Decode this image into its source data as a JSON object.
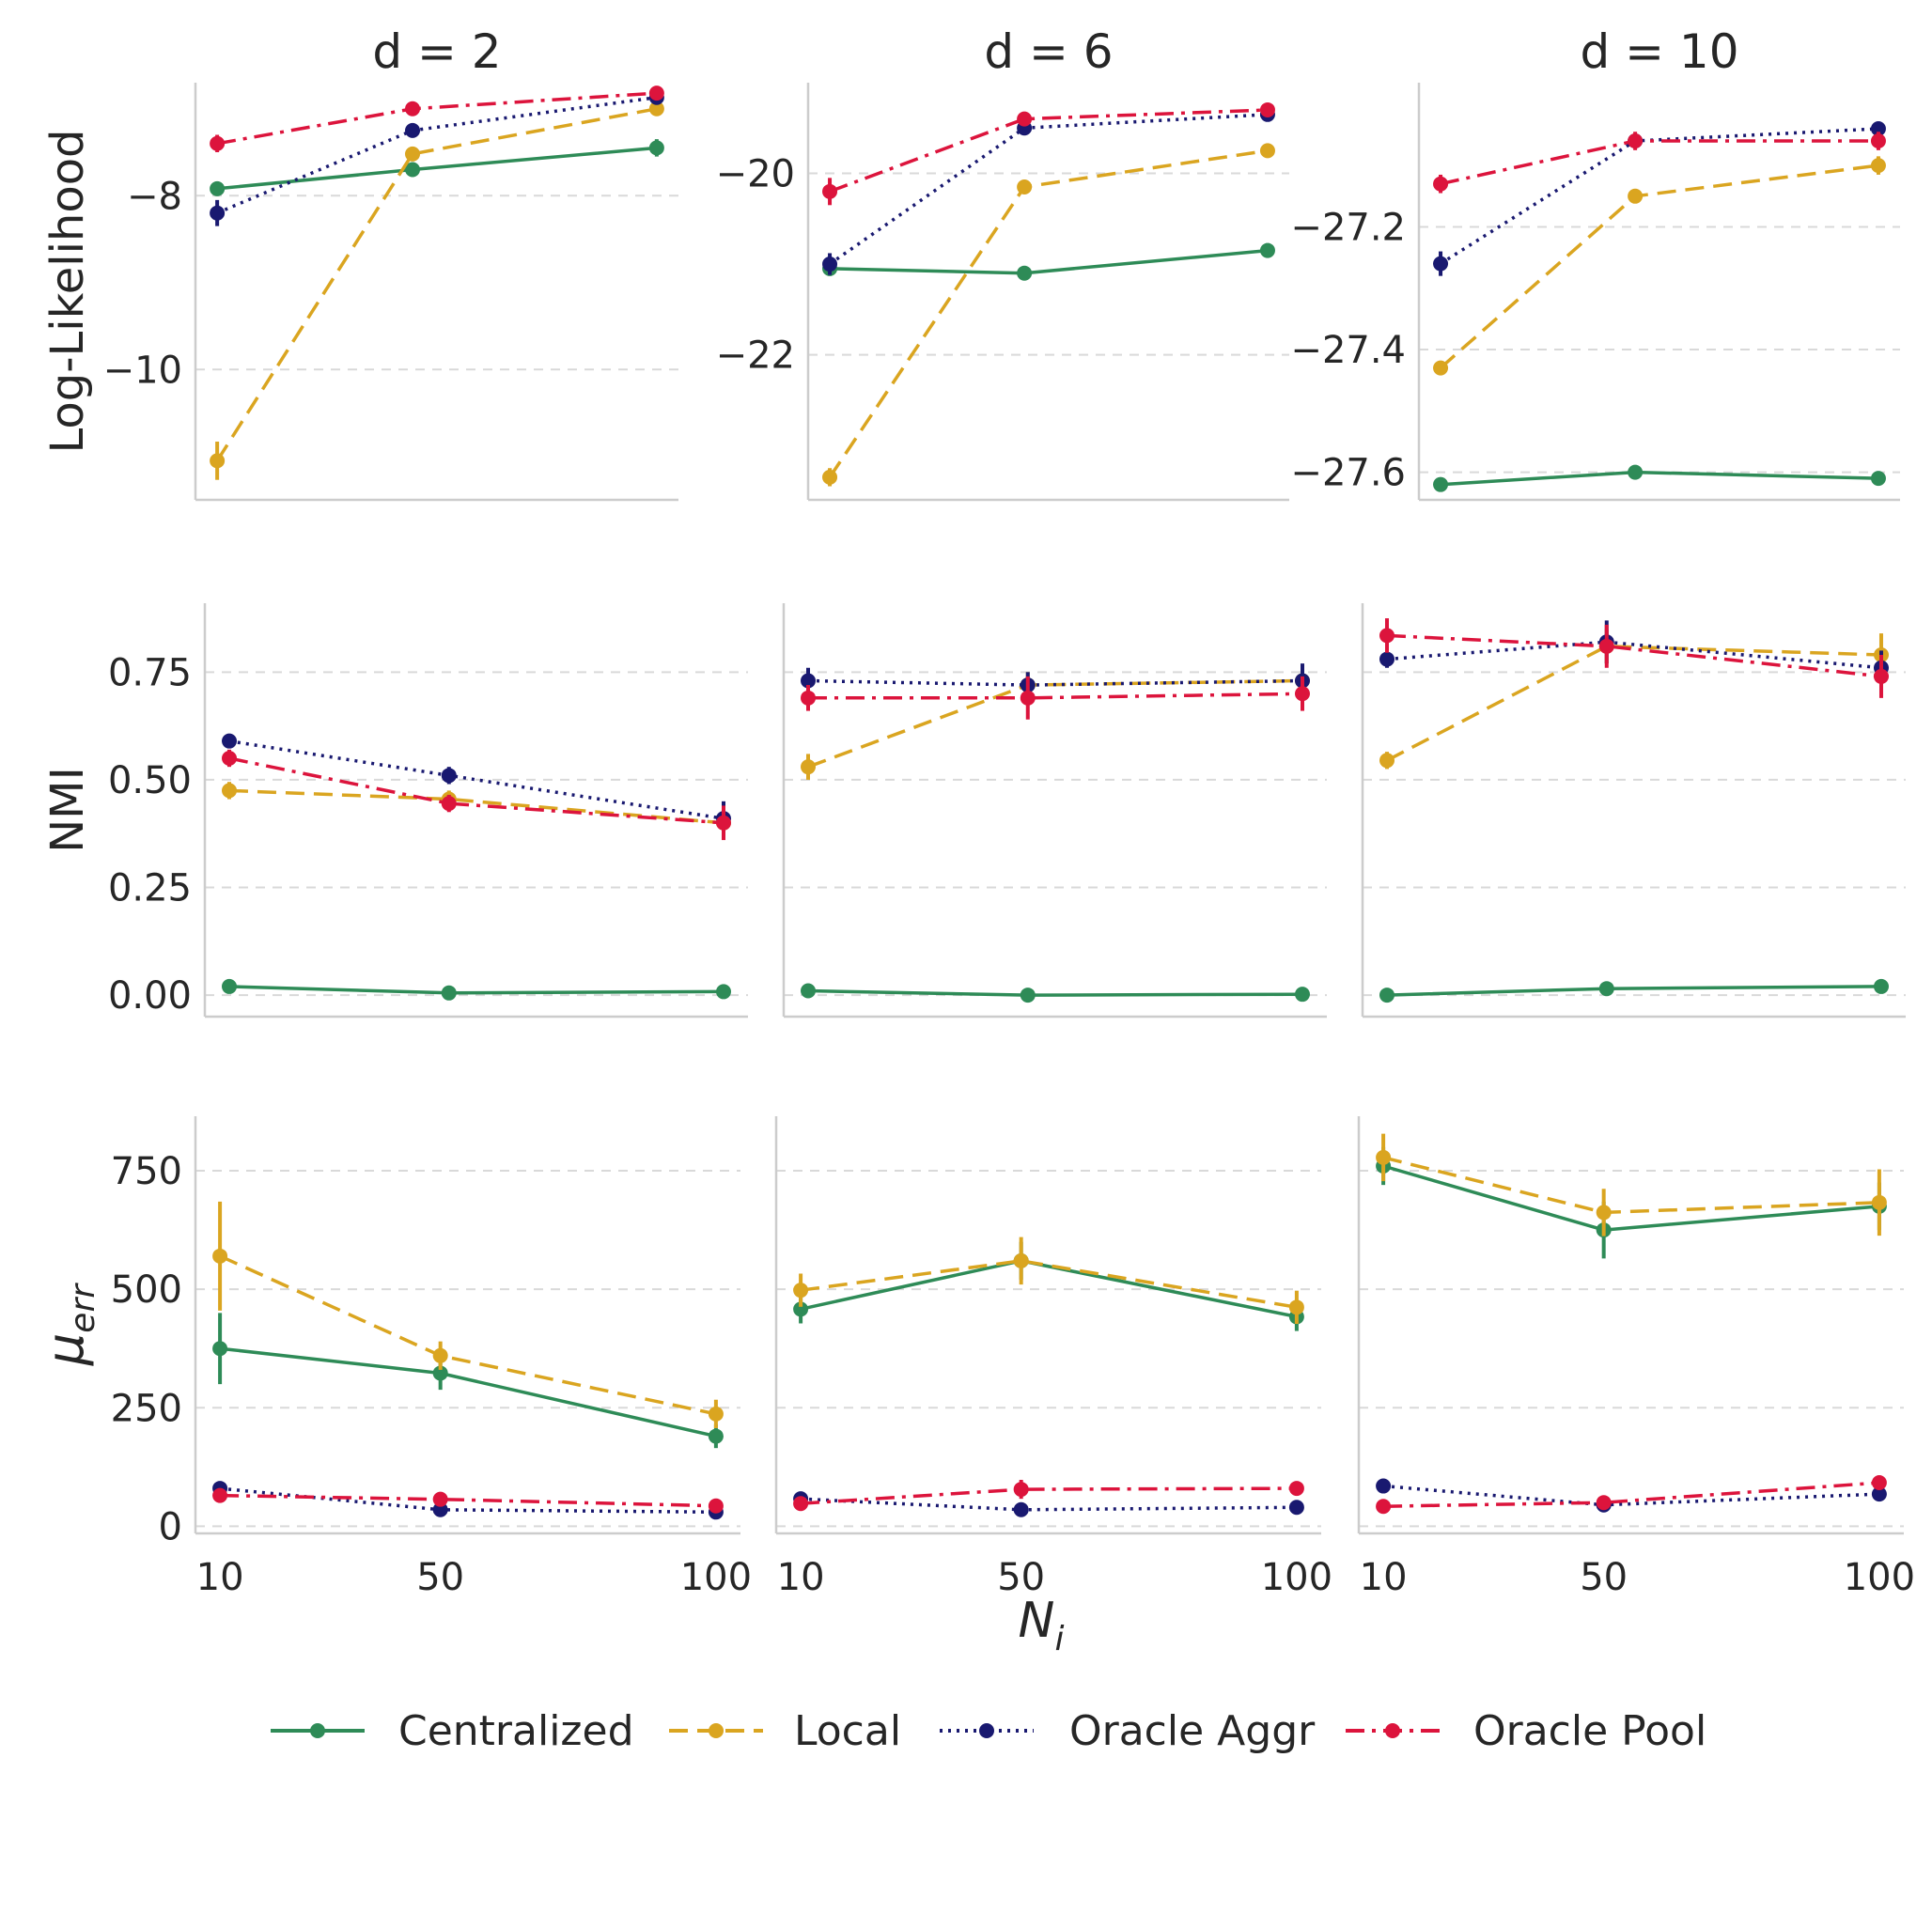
{
  "chart_data": {
    "type": "line",
    "x_label_main": "N",
    "x_label_sub": "i",
    "columns": [
      "d = 2",
      "d = 6",
      "d = 10"
    ],
    "x_categories": [
      "10",
      "50",
      "100"
    ],
    "rows": [
      {
        "ylabel": "Log-Likelihood",
        "ylabel_sub": "",
        "panels": [
          {
            "ylim": [
              -11.5,
              -6.7
            ],
            "yticks": [
              -8,
              -10
            ],
            "ytick_labels": [
              "−8",
              "−10"
            ],
            "series": [
              {
                "name": "Centralized",
                "values": [
                  -7.92,
                  -7.7,
                  -7.45
                ],
                "err": [
                  0.05,
                  0.06,
                  0.1
                ]
              },
              {
                "name": "Local",
                "values": [
                  -11.05,
                  -7.52,
                  -7.0
                ],
                "err": [
                  0.22,
                  0.06,
                  0.05
                ]
              },
              {
                "name": "Oracle Aggr",
                "values": [
                  -8.2,
                  -7.25,
                  -6.87
                ],
                "err": [
                  0.15,
                  0.05,
                  0.04
                ]
              },
              {
                "name": "Oracle Pool",
                "values": [
                  -7.4,
                  -7.0,
                  -6.82
                ],
                "err": [
                  0.1,
                  0.04,
                  0.03
                ]
              }
            ]
          },
          {
            "ylim": [
              -23.6,
              -19.0
            ],
            "yticks": [
              -20,
              -22
            ],
            "ytick_labels": [
              "−20",
              "−22"
            ],
            "series": [
              {
                "name": "Centralized",
                "values": [
                  -21.05,
                  -21.1,
                  -20.85
                ],
                "err": [
                  0.08,
                  0.05,
                  0.08
                ]
              },
              {
                "name": "Local",
                "values": [
                  -23.35,
                  -20.15,
                  -19.75
                ],
                "err": [
                  0.1,
                  0.06,
                  0.06
                ]
              },
              {
                "name": "Oracle Aggr",
                "values": [
                  -21.0,
                  -19.5,
                  -19.35
                ],
                "err": [
                  0.12,
                  0.05,
                  0.05
                ]
              },
              {
                "name": "Oracle Pool",
                "values": [
                  -20.2,
                  -19.4,
                  -19.3
                ],
                "err": [
                  0.15,
                  0.04,
                  0.04
                ]
              }
            ]
          },
          {
            "ylim": [
              -27.645,
              -26.965
            ],
            "yticks": [
              -27.2,
              -27.4,
              -27.6
            ],
            "ytick_labels": [
              "−27.2",
              "−27.4",
              "−27.6"
            ],
            "series": [
              {
                "name": "Centralized",
                "values": [
                  -27.62,
                  -27.6,
                  -27.61
                ],
                "err": [
                  0.007,
                  0.01,
                  0.007
                ]
              },
              {
                "name": "Local",
                "values": [
                  -27.43,
                  -27.15,
                  -27.1
                ],
                "err": [
                  0.01,
                  0.008,
                  0.015
                ]
              },
              {
                "name": "Oracle Aggr",
                "values": [
                  -27.26,
                  -27.06,
                  -27.04
                ],
                "err": [
                  0.02,
                  0.01,
                  0.01
                ]
              },
              {
                "name": "Oracle Pool",
                "values": [
                  -27.13,
                  -27.06,
                  -27.06
                ],
                "err": [
                  0.015,
                  0.015,
                  0.015
                ]
              }
            ]
          }
        ]
      },
      {
        "ylabel": "NMI",
        "ylabel_sub": "",
        "panels": [
          {
            "ylim": [
              -0.05,
              0.91
            ],
            "yticks": [
              0.75,
              0.5,
              0.25,
              0.0
            ],
            "ytick_labels": [
              "0.75",
              "0.50",
              "0.25",
              "0.00"
            ],
            "series": [
              {
                "name": "Centralized",
                "values": [
                  0.02,
                  0.005,
                  0.008
                ],
                "err": [
                  0.01,
                  0.005,
                  0.005
                ]
              },
              {
                "name": "Local",
                "values": [
                  0.475,
                  0.455,
                  0.4
                ],
                "err": [
                  0.02,
                  0.02,
                  0.03
                ]
              },
              {
                "name": "Oracle Aggr",
                "values": [
                  0.59,
                  0.51,
                  0.41
                ],
                "err": [
                  0.015,
                  0.02,
                  0.04
                ]
              },
              {
                "name": "Oracle Pool",
                "values": [
                  0.55,
                  0.445,
                  0.4
                ],
                "err": [
                  0.02,
                  0.02,
                  0.04
                ]
              }
            ]
          },
          {
            "ylim": [
              -0.05,
              0.91
            ],
            "yticks": [
              0.75,
              0.5,
              0.25,
              0.0
            ],
            "ytick_labels": [
              "",
              "",
              "",
              ""
            ],
            "series": [
              {
                "name": "Centralized",
                "values": [
                  0.01,
                  0.0,
                  0.002
                ],
                "err": [
                  0.005,
                  0.003,
                  0.003
                ]
              },
              {
                "name": "Local",
                "values": [
                  0.53,
                  0.72,
                  0.73
                ],
                "err": [
                  0.03,
                  0.03,
                  0.02
                ]
              },
              {
                "name": "Oracle Aggr",
                "values": [
                  0.73,
                  0.72,
                  0.73
                ],
                "err": [
                  0.03,
                  0.03,
                  0.04
                ]
              },
              {
                "name": "Oracle Pool",
                "values": [
                  0.69,
                  0.69,
                  0.7
                ],
                "err": [
                  0.03,
                  0.05,
                  0.04
                ]
              }
            ]
          },
          {
            "ylim": [
              -0.05,
              0.91
            ],
            "yticks": [
              0.75,
              0.5,
              0.25,
              0.0
            ],
            "ytick_labels": [
              "",
              "",
              "",
              ""
            ],
            "series": [
              {
                "name": "Centralized",
                "values": [
                  0.0,
                  0.015,
                  0.02
                ],
                "err": [
                  0.003,
                  0.008,
                  0.015
                ]
              },
              {
                "name": "Local",
                "values": [
                  0.545,
                  0.81,
                  0.79
                ],
                "err": [
                  0.02,
                  0.04,
                  0.05
                ]
              },
              {
                "name": "Oracle Aggr",
                "values": [
                  0.78,
                  0.82,
                  0.76
                ],
                "err": [
                  0.02,
                  0.05,
                  0.04
                ]
              },
              {
                "name": "Oracle Pool",
                "values": [
                  0.835,
                  0.81,
                  0.74
                ],
                "err": [
                  0.04,
                  0.05,
                  0.05
                ]
              }
            ]
          }
        ]
      },
      {
        "ylabel": "μ",
        "ylabel_sub": "err",
        "panels": [
          {
            "ylim": [
              -15,
              865
            ],
            "yticks": [
              750,
              500,
              250,
              0
            ],
            "ytick_labels": [
              "750",
              "500",
              "250",
              "0"
            ],
            "series": [
              {
                "name": "Centralized",
                "values": [
                  375,
                  323,
                  190
                ],
                "err": [
                  75,
                  35,
                  25
                ]
              },
              {
                "name": "Local",
                "values": [
                  570,
                  360,
                  237
                ],
                "err": [
                  115,
                  30,
                  30
                ]
              },
              {
                "name": "Oracle Aggr",
                "values": [
                  80,
                  35,
                  30
                ],
                "err": [
                  15,
                  5,
                  5
                ]
              },
              {
                "name": "Oracle Pool",
                "values": [
                  65,
                  57,
                  43
                ],
                "err": [
                  15,
                  10,
                  8
                ]
              }
            ]
          },
          {
            "ylim": [
              -15,
              865
            ],
            "yticks": [
              750,
              500,
              250,
              0
            ],
            "ytick_labels": [
              "",
              "",
              "",
              ""
            ],
            "series": [
              {
                "name": "Centralized",
                "values": [
                  458,
                  560,
                  442
                ],
                "err": [
                  30,
                  40,
                  30
                ]
              },
              {
                "name": "Local",
                "values": [
                  498,
                  560,
                  462
                ],
                "err": [
                  35,
                  50,
                  35
                ]
              },
              {
                "name": "Oracle Aggr",
                "values": [
                  58,
                  35,
                  40
                ],
                "err": [
                  10,
                  5,
                  5
                ]
              },
              {
                "name": "Oracle Pool",
                "values": [
                  48,
                  78,
                  80
                ],
                "err": [
                  10,
                  20,
                  15
                ]
              }
            ]
          },
          {
            "ylim": [
              -15,
              865
            ],
            "yticks": [
              750,
              500,
              250,
              0
            ],
            "ytick_labels": [
              "",
              "",
              "",
              ""
            ],
            "series": [
              {
                "name": "Centralized",
                "values": [
                  760,
                  625,
                  675
                ],
                "err": [
                  40,
                  60,
                  50
                ]
              },
              {
                "name": "Local",
                "values": [
                  778,
                  662,
                  683
                ],
                "err": [
                  50,
                  50,
                  70
                ]
              },
              {
                "name": "Oracle Aggr",
                "values": [
                  85,
                  45,
                  68
                ],
                "err": [
                  10,
                  10,
                  10
                ]
              },
              {
                "name": "Oracle Pool",
                "values": [
                  42,
                  50,
                  92
                ],
                "err": [
                  8,
                  15,
                  15
                ]
              }
            ]
          }
        ]
      }
    ],
    "legend": {
      "position": "bottom-center",
      "entries": [
        {
          "name": "Centralized",
          "color": "#2e8b57",
          "dash": "solid"
        },
        {
          "name": "Local",
          "color": "#daa520",
          "dash": "dashed"
        },
        {
          "name": "Oracle Aggr",
          "color": "#191970",
          "dash": "dotted"
        },
        {
          "name": "Oracle Pool",
          "color": "#dc143c",
          "dash": "dashdot"
        }
      ]
    },
    "grid": "horizontal-dashed"
  }
}
